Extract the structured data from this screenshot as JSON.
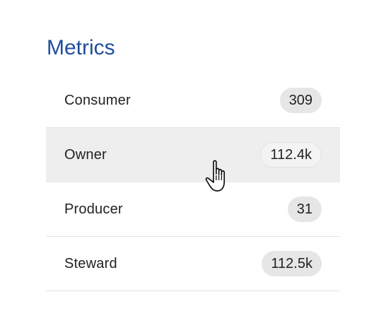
{
  "metrics": {
    "title": "Metrics",
    "items": [
      {
        "label": "Consumer",
        "count": "309"
      },
      {
        "label": "Owner",
        "count": "112.4k"
      },
      {
        "label": "Producer",
        "count": "31"
      },
      {
        "label": "Steward",
        "count": "112.5k"
      }
    ]
  },
  "cursor": {
    "icon": "hand-pointer-icon"
  }
}
